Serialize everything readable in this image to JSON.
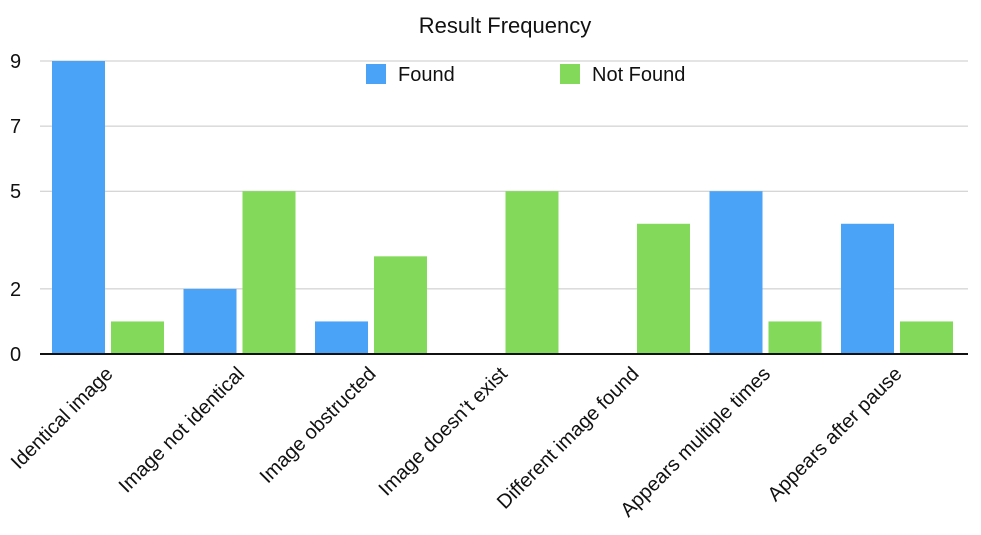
{
  "chart_data": {
    "type": "bar",
    "title": "Result Frequency",
    "categories": [
      "Identical image",
      "Image not identical",
      "Image obstructed",
      "Image doesn’t exist",
      "Different image found",
      "Appears multiple times",
      "Appears after pause"
    ],
    "series": [
      {
        "name": "Found",
        "color": "#4aa3f7",
        "values": [
          9,
          2,
          1,
          0,
          0,
          5,
          4
        ]
      },
      {
        "name": "Not Found",
        "color": "#82d95a",
        "values": [
          1,
          5,
          3,
          5,
          4,
          1,
          1
        ]
      }
    ],
    "y_ticks": [
      0,
      2,
      5,
      7,
      9
    ],
    "ylim": [
      0,
      9
    ],
    "legend_position": "top-center",
    "grid": true
  }
}
